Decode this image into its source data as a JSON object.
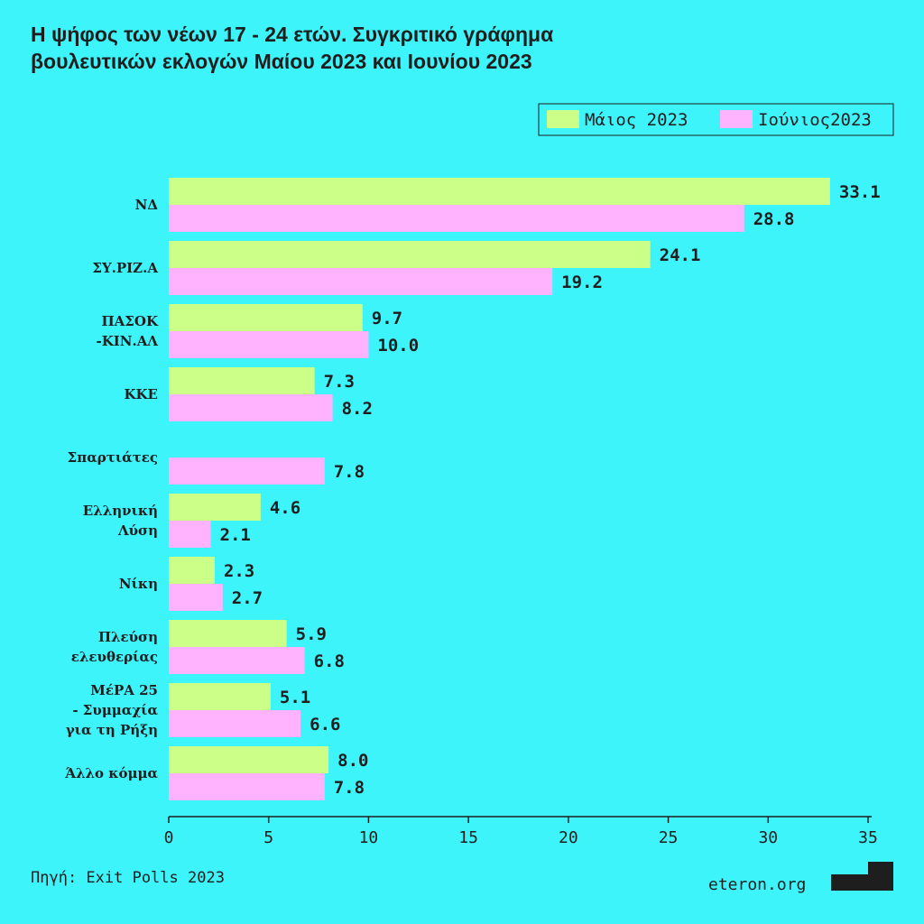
{
  "chart_data": {
    "type": "bar",
    "orientation": "horizontal",
    "title": "Η ψήφος των νέων 17 - 24 ετών. Συγκριτικό γράφημα\nβουλευτικών εκλογών Μαίου 2023 και Ιουνίου 2023",
    "categories": [
      "ΝΔ",
      "ΣΥ.ΡΙΖ.Α",
      "ΠΑΣΟΚ\n-ΚΙΝ.ΑΛ",
      "ΚΚΕ",
      "Σπαρτιάτες",
      "Ελληνική\nΛύση",
      "Νίκη",
      "Πλεύση\nελευθερίας",
      "ΜέΡΑ 25\n-  Συμμαχία\nγια τη Ρήξη",
      "Άλλο κόμμα"
    ],
    "series": [
      {
        "name": "Μάιος 2023",
        "color": "#ccff88",
        "values": [
          33.1,
          24.1,
          9.7,
          7.3,
          null,
          4.6,
          2.3,
          5.9,
          5.1,
          8.0
        ],
        "value_labels": [
          "33.1",
          "24.1",
          "9.7",
          "7.3",
          null,
          "4.6",
          "2.3",
          "5.9",
          "5.1",
          "8.0"
        ]
      },
      {
        "name": "Ιούνιος2023",
        "color": "#ffb3ff",
        "values": [
          28.8,
          19.2,
          10.0,
          8.2,
          7.8,
          2.1,
          2.7,
          6.8,
          6.6,
          7.8
        ],
        "value_labels": [
          "28.8",
          "19.2",
          "10.0",
          "8.2",
          "7.8",
          "2.1",
          "2.7",
          "6.8",
          "6.6",
          "7.8"
        ]
      }
    ],
    "xlim": [
      0,
      35
    ],
    "xticks": [
      0,
      5,
      10,
      15,
      20,
      25,
      30,
      35
    ],
    "source": "Πηγή: Exit Polls 2023",
    "brand": "eteron.org"
  }
}
